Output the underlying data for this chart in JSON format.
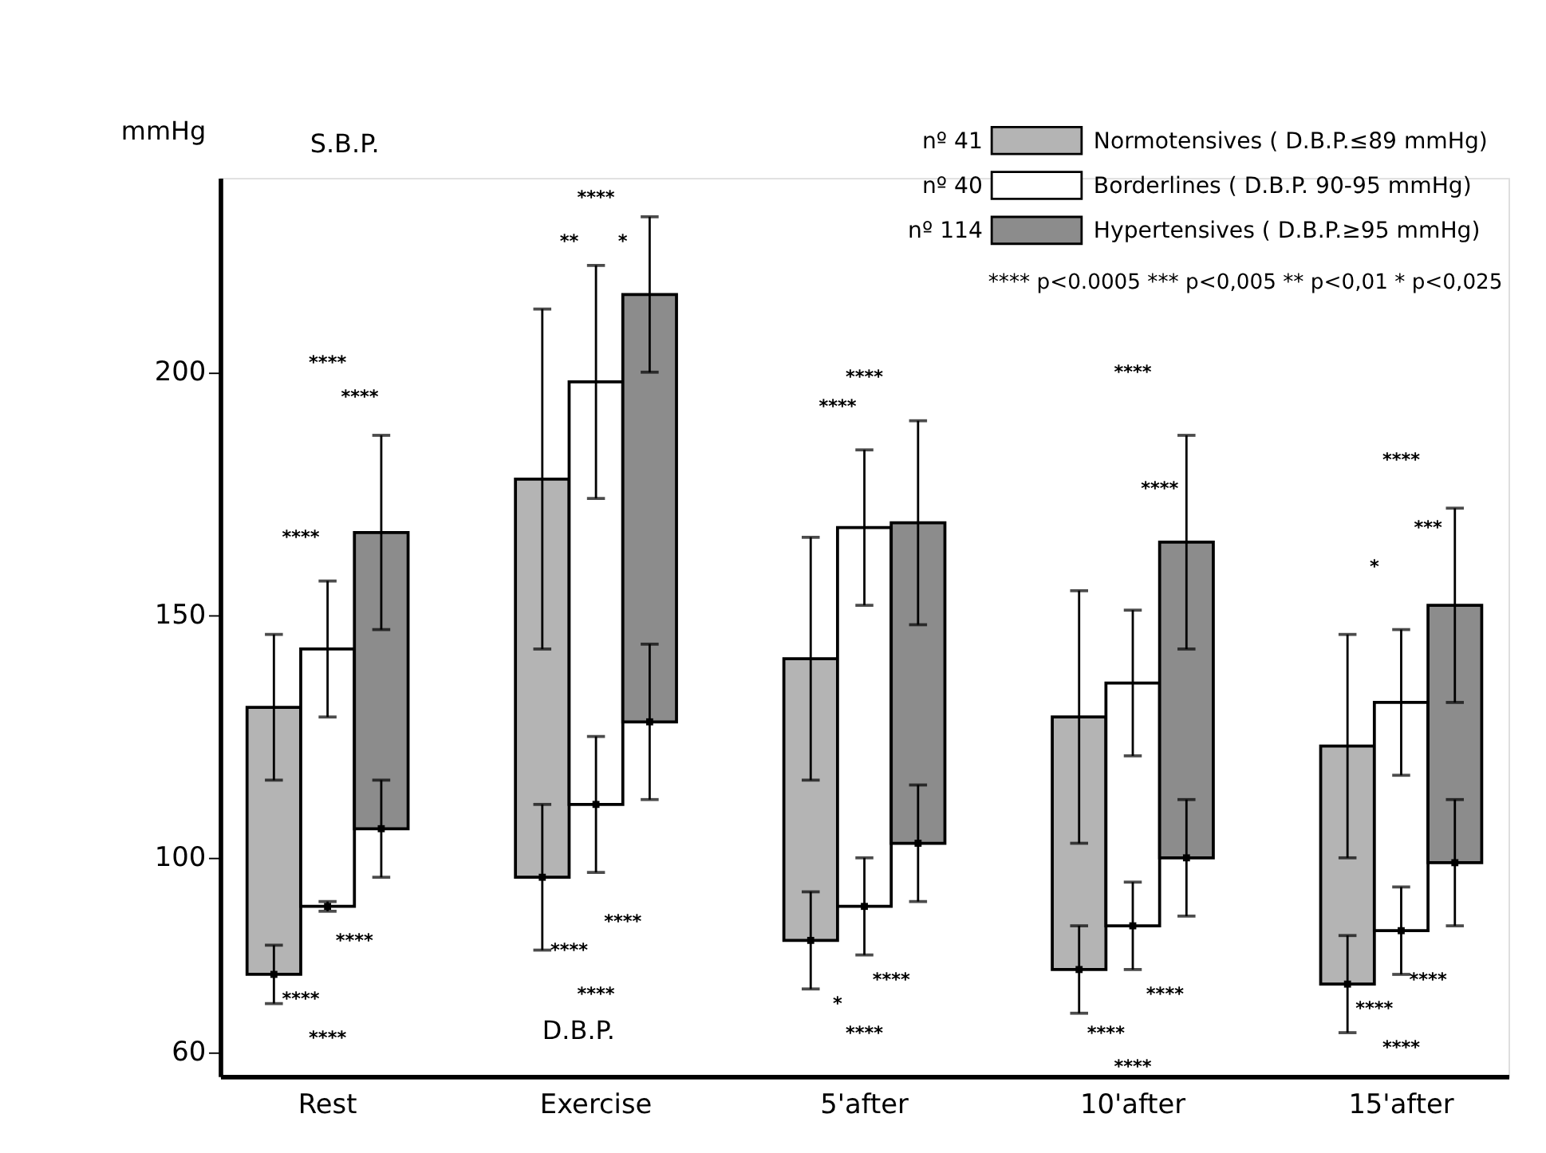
{
  "chart_data": {
    "type": "bar",
    "ylabel": "mmHg",
    "categories": [
      null,
      "Rest",
      null,
      null,
      null,
      null,
      "Exercise",
      null,
      null,
      null,
      null,
      "5'after",
      null,
      null,
      null,
      null,
      "10'after",
      null,
      null,
      null,
      null,
      "15'after",
      null
    ],
    "ylim": [
      55,
      240
    ],
    "yticks": [
      60,
      100,
      150,
      200
    ],
    "grid": false,
    "legend": "top right",
    "series": [
      {
        "name": "Normotensives ( D.B.P.≤89 mmHg)",
        "color": "#b4b4b4",
        "base": [
          76,
          null,
          null,
          null,
          null,
          96,
          null,
          null,
          null,
          null,
          83,
          null,
          null,
          null,
          null,
          77,
          null,
          null,
          null,
          null,
          74,
          null,
          null
        ],
        "values": [
          55,
          null,
          null,
          null,
          null,
          82,
          null,
          null,
          null,
          null,
          58,
          null,
          null,
          null,
          null,
          52,
          null,
          null,
          null,
          null,
          49,
          null,
          null
        ],
        "errors": [
          15,
          null,
          null,
          null,
          null,
          35,
          null,
          null,
          null,
          null,
          25,
          null,
          null,
          null,
          null,
          26,
          null,
          null,
          null,
          null,
          23,
          null,
          null
        ]
      },
      {
        "name": "Borderlines ( D.B.P. 90-95 mmHg)",
        "color": "#ffffff",
        "base": [
          null,
          90,
          null,
          null,
          null,
          null,
          111,
          null,
          null,
          null,
          null,
          90,
          null,
          null,
          null,
          null,
          86,
          null,
          null,
          null,
          null,
          85,
          null
        ],
        "values": [
          null,
          53,
          null,
          null,
          null,
          null,
          87,
          null,
          null,
          null,
          null,
          78,
          null,
          null,
          null,
          null,
          50,
          null,
          null,
          null,
          null,
          47,
          null
        ],
        "errors": [
          null,
          14,
          null,
          null,
          null,
          null,
          24,
          null,
          null,
          null,
          null,
          16,
          null,
          null,
          null,
          null,
          15,
          null,
          null,
          null,
          null,
          15,
          null
        ]
      },
      {
        "name": "Hypertensives ( D.B.P.≥95 mmHg)",
        "color": "#8c8c8c",
        "base": [
          null,
          null,
          106,
          null,
          null,
          null,
          null,
          128,
          null,
          null,
          null,
          null,
          103,
          null,
          null,
          null,
          null,
          100,
          null,
          null,
          null,
          null,
          99
        ],
        "values": [
          null,
          null,
          61,
          null,
          null,
          null,
          null,
          88,
          null,
          null,
          null,
          null,
          66,
          null,
          null,
          null,
          null,
          65,
          null,
          null,
          null,
          null,
          53
        ],
        "errors": [
          null,
          null,
          20,
          null,
          null,
          null,
          null,
          16,
          null,
          null,
          null,
          null,
          21,
          null,
          null,
          null,
          null,
          22,
          null,
          null,
          null,
          null,
          20
        ]
      },
      {
        "type": "scatter",
        "marker": "square",
        "color": "#000000",
        "values": [
          76,
          null,
          null,
          null,
          null,
          96,
          null,
          null,
          null,
          null,
          83,
          null,
          null,
          null,
          null,
          77,
          null,
          null,
          null,
          null,
          74,
          null,
          null
        ],
        "errors": [
          6,
          null,
          null,
          null,
          null,
          15,
          null,
          null,
          null,
          null,
          10,
          null,
          null,
          null,
          null,
          9,
          null,
          null,
          null,
          null,
          10,
          null,
          null
        ]
      },
      {
        "type": "scatter",
        "marker": "square",
        "color": "#000000",
        "values": [
          null,
          90,
          null,
          null,
          null,
          null,
          111,
          null,
          null,
          null,
          null,
          90,
          null,
          null,
          null,
          null,
          86,
          null,
          null,
          null,
          null,
          85,
          null
        ],
        "errors": [
          null,
          1,
          null,
          null,
          null,
          null,
          14,
          null,
          null,
          null,
          null,
          10,
          null,
          null,
          null,
          null,
          9,
          null,
          null,
          null,
          null,
          9,
          null
        ]
      },
      {
        "type": "scatter",
        "marker": "square",
        "color": "#000000",
        "values": [
          null,
          null,
          106,
          null,
          null,
          null,
          null,
          128,
          null,
          null,
          null,
          null,
          103,
          null,
          null,
          null,
          null,
          100,
          null,
          null,
          null,
          null,
          99
        ],
        "errors": [
          null,
          null,
          10,
          null,
          null,
          null,
          null,
          16,
          null,
          null,
          null,
          null,
          12,
          null,
          null,
          null,
          null,
          12,
          null,
          null,
          null,
          null,
          13
        ]
      }
    ],
    "annotations": [
      "S.B.P.",
      "D.B.P.",
      "**** p<0.0005   *** p<0,005   ** p<0,01   * p<0,025",
      "nº 41",
      "nº 40",
      "nº 114",
      "****",
      "****",
      "****",
      "****",
      "****",
      "****",
      "****",
      "**",
      "*",
      "****",
      "****",
      "****",
      "****",
      "****",
      "****",
      "*",
      "****",
      "****",
      "****",
      "****",
      "****",
      "****",
      "****",
      "***",
      "*",
      "****",
      "****",
      "****"
    ]
  }
}
